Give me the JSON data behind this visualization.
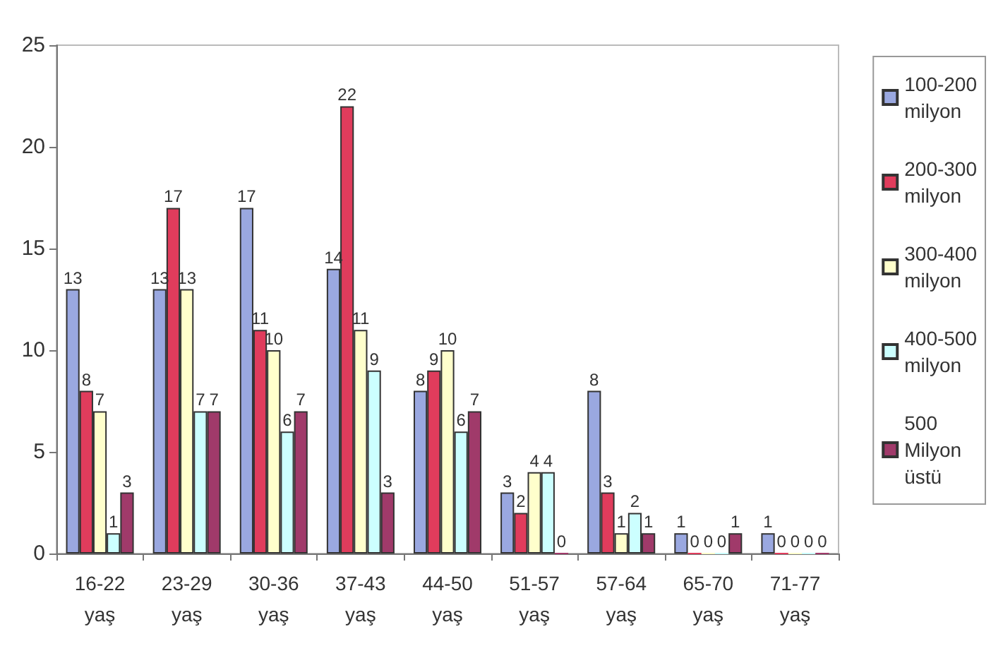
{
  "chart_data": {
    "type": "bar",
    "categories": [
      "16-22 yaş",
      "23-29 yaş",
      "30-36 yaş",
      "37-43 yaş",
      "44-50 yaş",
      "51-57 yaş",
      "57-64 yaş",
      "65-70 yaş",
      "71-77 yaş"
    ],
    "series": [
      {
        "name": "100-200 milyon",
        "color": "#9aa8e0",
        "values": [
          13,
          13,
          17,
          14,
          8,
          3,
          8,
          1,
          1
        ]
      },
      {
        "name": "200-300 milyon",
        "color": "#e03c5c",
        "values": [
          8,
          17,
          11,
          22,
          9,
          2,
          3,
          0,
          0
        ]
      },
      {
        "name": "300-400 milyon",
        "color": "#ffffcc",
        "values": [
          7,
          13,
          10,
          11,
          10,
          4,
          1,
          0,
          0
        ]
      },
      {
        "name": "400-500 milyon",
        "color": "#ccffff",
        "values": [
          1,
          7,
          6,
          9,
          6,
          4,
          2,
          0,
          0
        ]
      },
      {
        "name": "500 Milyon üstü",
        "color": "#a03a6a",
        "values": [
          3,
          7,
          7,
          3,
          7,
          0,
          1,
          1,
          0
        ]
      }
    ],
    "ylim": [
      0,
      25
    ],
    "yticks": [
      0,
      5,
      10,
      15,
      20,
      25
    ],
    "grid": false,
    "legend": "right",
    "data_labels": true
  }
}
